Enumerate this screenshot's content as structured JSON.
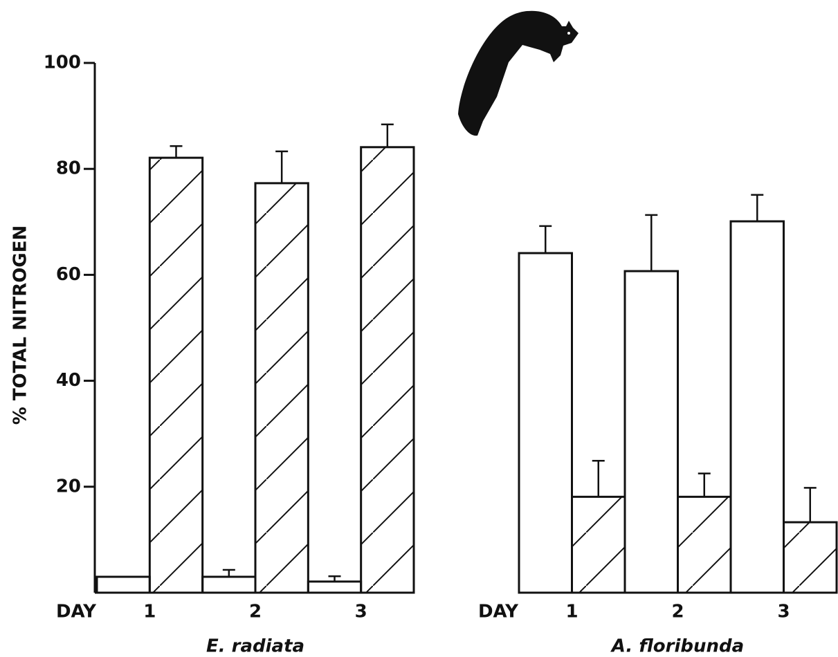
{
  "chart_data": [
    {
      "type": "bar",
      "ylabel": "% TOTAL NITROGEN",
      "xlabel": "E. radiata",
      "day_label": "DAY",
      "categories": [
        "1",
        "2",
        "3"
      ],
      "ylim": [
        0,
        100
      ],
      "yticks": [
        20,
        40,
        60,
        80,
        100
      ],
      "series": [
        {
          "color": "#ffffff",
          "hatch": false,
          "values": [
            3,
            3,
            2.1
          ],
          "errors": [
            null,
            1.3,
            1
          ]
        },
        {
          "color": "#ffffff",
          "hatch": true,
          "values": [
            82.1,
            77.3,
            84.1
          ],
          "errors": [
            2.2,
            6,
            4.3
          ]
        }
      ]
    },
    {
      "type": "bar",
      "xlabel": "A. floribunda",
      "day_label": "DAY",
      "categories": [
        "1",
        "2",
        "3"
      ],
      "ylim": [
        0,
        100
      ],
      "series": [
        {
          "color": "#ffffff",
          "hatch": false,
          "values": [
            64.1,
            60.7,
            70.1
          ],
          "errors": [
            5.1,
            10.6,
            5
          ]
        },
        {
          "color": "#ffffff",
          "hatch": true,
          "values": [
            18.1,
            18.1,
            13.3
          ],
          "errors": [
            6.8,
            4.4,
            6.5
          ]
        }
      ]
    }
  ]
}
